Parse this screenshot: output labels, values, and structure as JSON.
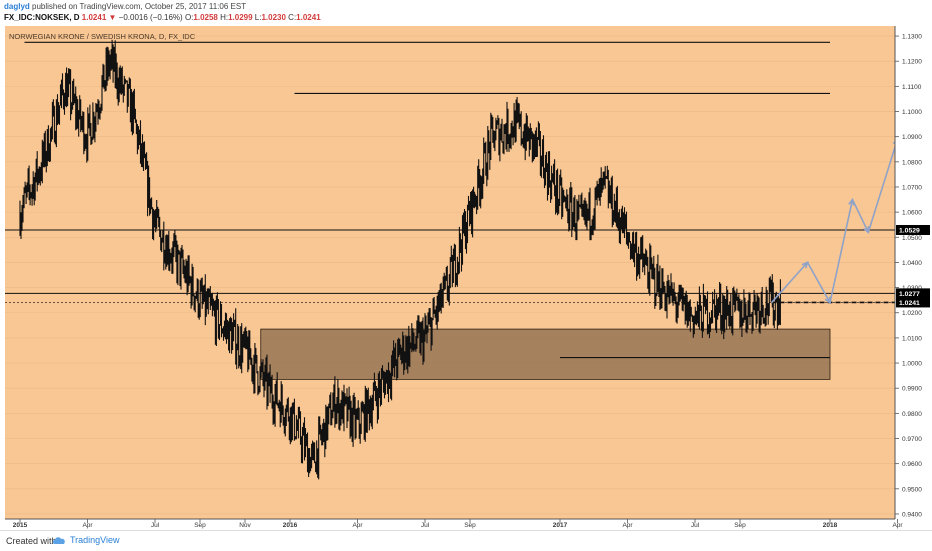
{
  "header": {
    "username": "daglyd",
    "published_text": "published on TradingView.com, October 25, 2017 11:06 EST",
    "symbol": "FX_IDC:NOKSEK, D",
    "last": "1.0241",
    "change_arrow": "▼",
    "change": "−0.0016 (−0.16%)",
    "o_label": "O:",
    "o_value": "1.0258",
    "h_label": "H:",
    "h_value": "1.0299",
    "l_label": "L:",
    "l_value": "1.0230",
    "c_label": "C:",
    "c_value": "1.0241"
  },
  "footer": {
    "created_with": "Created with",
    "brand": "TradingView"
  },
  "colors": {
    "background": "#f9c794",
    "grid": "#e9b884",
    "candle": "#111111",
    "box_fill": "#8a6a4c",
    "projection": "#8fa2c8",
    "red": "#d23b3b",
    "label_dark": "#000000"
  },
  "chart_data": {
    "type": "line",
    "title": "NORWEGIAN KRONE / SWEDISH KRONA, D, FX_IDC",
    "x_ticks": [
      "2015",
      "Apr",
      "Jul",
      "Sep",
      "Nov",
      "2016",
      "Apr",
      "Jul",
      "Sep",
      "2017",
      "Apr",
      "Jul",
      "Sep",
      "2018",
      "Apr"
    ],
    "y_ticks": [
      "1.1300",
      "1.1200",
      "1.1100",
      "1.1000",
      "1.0900",
      "1.0800",
      "1.0700",
      "1.0600",
      "1.0500",
      "1.0400",
      "1.0300",
      "1.0200",
      "1.0100",
      "1.0000",
      "0.9900",
      "0.9800",
      "0.9700",
      "0.9600",
      "0.9500",
      "0.9400"
    ],
    "ylim": [
      0.938,
      1.134
    ],
    "x": [
      "2015-01",
      "2015-02",
      "2015-03",
      "2015-04",
      "2015-05",
      "2015-06",
      "2015-07",
      "2015-08",
      "2015-09",
      "2015-10",
      "2015-11",
      "2015-12",
      "2016-01",
      "2016-02",
      "2016-03",
      "2016-04",
      "2016-05",
      "2016-06",
      "2016-07",
      "2016-08",
      "2016-09",
      "2016-10",
      "2016-11",
      "2016-12",
      "2017-01",
      "2017-02",
      "2017-03",
      "2017-04",
      "2017-05",
      "2017-06",
      "2017-07",
      "2017-08",
      "2017-09",
      "2017-10"
    ],
    "series": [
      {
        "values": [
          1.06,
          1.08,
          1.11,
          1.09,
          1.12,
          1.1,
          1.055,
          1.04,
          1.025,
          1.015,
          1.005,
          0.99,
          0.98,
          0.96,
          0.985,
          0.975,
          0.99,
          1.005,
          1.01,
          1.03,
          1.06,
          1.09,
          1.095,
          1.085,
          1.065,
          1.055,
          1.07,
          1.05,
          1.035,
          1.025,
          1.018,
          1.022,
          1.02,
          1.024
        ]
      }
    ],
    "price_labels": [
      "1.0529",
      "1.0277",
      "1.0241"
    ],
    "horizontal_levels": [
      1.1275,
      1.1072,
      1.0529,
      1.0277,
      1.0241,
      1.0022
    ],
    "support_zone": [
      0.9935,
      1.0135
    ],
    "projection_path": [
      1.024,
      1.04,
      1.024,
      1.065,
      1.052,
      1.089
    ],
    "grid": true,
    "legend": "none"
  }
}
